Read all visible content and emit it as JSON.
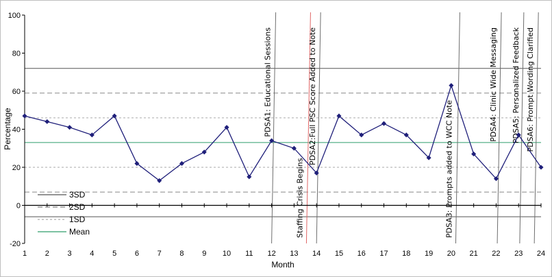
{
  "chart_data": {
    "type": "line",
    "title": "",
    "xlabel": "Month",
    "ylabel": "Percentage",
    "x": [
      1,
      2,
      3,
      4,
      5,
      6,
      7,
      8,
      9,
      10,
      11,
      12,
      13,
      14,
      15,
      16,
      17,
      18,
      19,
      20,
      21,
      22,
      23,
      24
    ],
    "series": [
      {
        "name": "",
        "values": [
          47,
          44,
          41,
          37,
          47,
          22,
          13,
          22,
          28,
          41,
          15,
          34,
          30,
          17,
          47,
          37,
          43,
          37,
          25,
          63,
          27,
          14,
          37,
          20
        ],
        "color": "#1f1f7a"
      }
    ],
    "ylim": [
      -20,
      100
    ],
    "yticks": [
      100,
      80,
      60,
      40,
      20,
      0,
      -20
    ],
    "xticks": [
      "1",
      "2",
      "3",
      "4",
      "5",
      "6",
      "7",
      "8",
      "9",
      "10",
      "11",
      "12",
      "13",
      "14",
      "15",
      "16",
      "17",
      "18",
      "19",
      "20",
      "21",
      "22",
      "23",
      "24"
    ],
    "xlim": [
      1,
      24
    ],
    "grid": false,
    "control_lines": {
      "mean": 33,
      "ucl_3sd": 72,
      "upper_2sd": 59,
      "upper_1sd": 46,
      "lower_1sd": 20,
      "lower_2sd": 7,
      "lcl_3sd": -6
    },
    "legend": {
      "placement": "bottom-left",
      "entries": [
        {
          "label": "3SD",
          "style": "solid",
          "color": "#555555"
        },
        {
          "label": "2SD",
          "style": "dashed",
          "color": "#888888"
        },
        {
          "label": "1SD",
          "style": "dotted",
          "color": "#aaaaaa"
        },
        {
          "label": "Mean",
          "style": "solid",
          "color": "#2e9e6b"
        }
      ]
    },
    "annotations": [
      {
        "x": 12,
        "text": "PDSA1: Educational Sessions",
        "label_pos": "top",
        "color": "#6e6e6e"
      },
      {
        "x": 13.55,
        "text": "Staffing Crisis Begins",
        "label_pos": "bottom",
        "color": "#e06666"
      },
      {
        "x": 14,
        "text": "PDSA2:Full PSC Score Added to Note",
        "label_pos": "top",
        "color": "#6e6e6e"
      },
      {
        "x": 20.2,
        "text": "PDSA3: Prompts added to WCC Note",
        "label_pos": "bottom",
        "color": "#6e6e6e"
      },
      {
        "x": 22.05,
        "text": "PDSA4: Clinic Wide Messaging",
        "label_pos": "top",
        "color": "#6e6e6e"
      },
      {
        "x": 23.05,
        "text": "PDSA5: Personalized Feedback",
        "label_pos": "top",
        "color": "#6e6e6e"
      },
      {
        "x": 23.7,
        "text": "PDSA6: Prompt Wording Clarified",
        "label_pos": "top",
        "color": "#6e6e6e"
      }
    ]
  }
}
